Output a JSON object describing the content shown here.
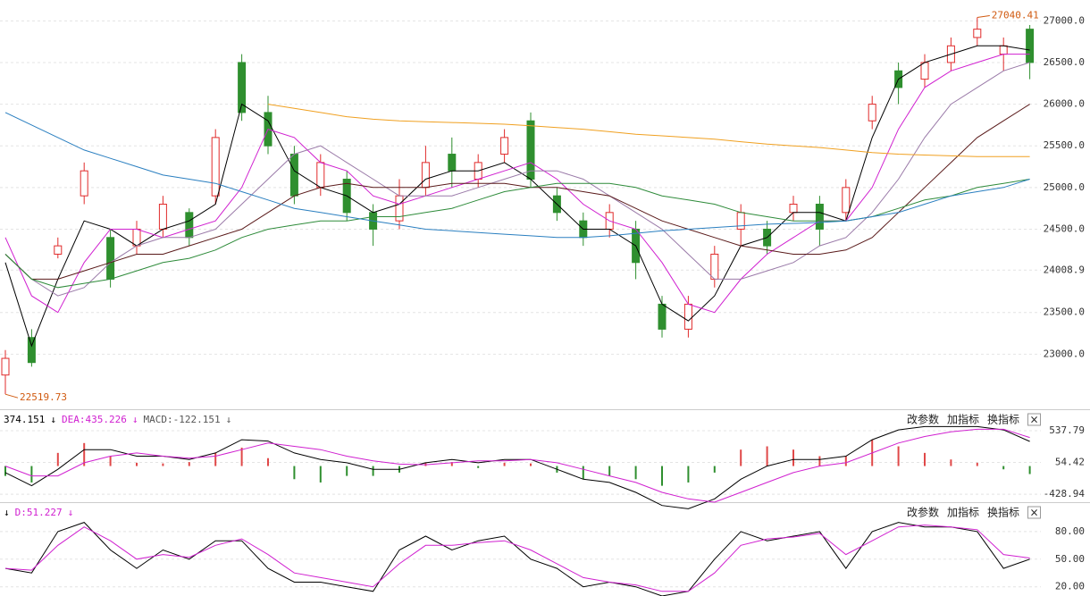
{
  "chart_data": [
    {
      "type": "candlestick",
      "ylim": [
        22350,
        27250
      ],
      "yticks": [
        {
          "value": 23000,
          "label": "23000.0"
        },
        {
          "value": 23500,
          "label": "23500.0"
        },
        {
          "value": 24008.9,
          "label": "24008.9"
        },
        {
          "value": 24500,
          "label": "24500.0"
        },
        {
          "value": 25000,
          "label": "25000.0"
        },
        {
          "value": 25500,
          "label": "25500.0"
        },
        {
          "value": 26000,
          "label": "26000.0"
        },
        {
          "value": 26500,
          "label": "26500.0"
        },
        {
          "value": 27000,
          "label": "27000.0"
        }
      ],
      "grid": true,
      "up_color": "#e02b2b",
      "down_color": "#2f8f2f",
      "open": [
        22750,
        23200,
        24200,
        24900,
        24400,
        24300,
        24500,
        24700,
        24900,
        26500,
        25900,
        25400,
        25000,
        25100,
        24700,
        24600,
        25000,
        25400,
        25100,
        25400,
        25800,
        24900,
        24600,
        24500,
        24500,
        23600,
        23300,
        23900,
        24500,
        24500,
        24700,
        24800,
        24700,
        25800,
        26400,
        26300,
        26500,
        26800,
        26600,
        26900
      ],
      "high": [
        23050,
        23300,
        24400,
        25300,
        24500,
        24600,
        24900,
        24750,
        25700,
        26600,
        26100,
        25500,
        25400,
        25200,
        24800,
        25100,
        25500,
        25600,
        25400,
        25700,
        25900,
        25000,
        24700,
        24800,
        24600,
        23700,
        23700,
        24300,
        24800,
        24600,
        24900,
        24900,
        25100,
        26100,
        26500,
        26600,
        26800,
        27040.41,
        26800,
        26950
      ],
      "low": [
        22519.73,
        22850,
        24150,
        24800,
        23800,
        24200,
        24400,
        24300,
        24800,
        25800,
        25400,
        24800,
        24900,
        24600,
        24300,
        24500,
        24900,
        25000,
        25000,
        25300,
        25000,
        24600,
        24300,
        24400,
        23900,
        23200,
        23200,
        23800,
        24300,
        24200,
        24600,
        24300,
        24600,
        25700,
        26000,
        26200,
        26400,
        26700,
        26400,
        26300
      ],
      "close": [
        22950,
        22900,
        24300,
        25200,
        23900,
        24500,
        24800,
        24400,
        25600,
        25900,
        25500,
        24900,
        25300,
        24700,
        24500,
        24900,
        25300,
        25200,
        25300,
        25600,
        25100,
        24700,
        24400,
        24700,
        24100,
        23300,
        23600,
        24200,
        24700,
        24300,
        24800,
        24500,
        25000,
        26000,
        26200,
        26500,
        26700,
        26900,
        26700,
        26500
      ],
      "lines": [
        {
          "color": "#000000",
          "values": [
            24100,
            23100,
            23900,
            24600,
            24500,
            24300,
            24500,
            24600,
            24800,
            26000,
            25800,
            25200,
            25000,
            24900,
            24700,
            24800,
            25100,
            25200,
            25200,
            25300,
            25100,
            24800,
            24500,
            24500,
            24300,
            23600,
            23400,
            23700,
            24300,
            24400,
            24700,
            24700,
            24600,
            25600,
            26300,
            26500,
            26600,
            26700,
            26700,
            26650
          ]
        },
        {
          "color": "#d020d0",
          "values": [
            24400,
            23700,
            23500,
            24100,
            24500,
            24500,
            24400,
            24500,
            24600,
            25000,
            25700,
            25600,
            25300,
            25200,
            24900,
            24800,
            24900,
            25000,
            25100,
            25200,
            25300,
            25100,
            24800,
            24600,
            24500,
            24100,
            23600,
            23500,
            23900,
            24200,
            24400,
            24600,
            24600,
            25000,
            25700,
            26200,
            26400,
            26500,
            26600,
            26600
          ]
        },
        {
          "color": "#9a7aa8",
          "values": [
            24200,
            23900,
            23700,
            23800,
            24100,
            24300,
            24400,
            24400,
            24500,
            24800,
            25100,
            25400,
            25500,
            25300,
            25100,
            24900,
            24900,
            24900,
            25000,
            25100,
            25200,
            25200,
            25100,
            24900,
            24700,
            24500,
            24200,
            23900,
            23900,
            24000,
            24100,
            24300,
            24400,
            24700,
            25100,
            25600,
            26000,
            26200,
            26400,
            26500
          ]
        },
        {
          "color": "#5a1a1a",
          "values": [
            24200,
            23900,
            23900,
            24000,
            24100,
            24200,
            24200,
            24300,
            24400,
            24500,
            24700,
            24900,
            25000,
            25050,
            25000,
            25000,
            25000,
            25050,
            25050,
            25050,
            25000,
            25000,
            24950,
            24900,
            24750,
            24600,
            24500,
            24400,
            24300,
            24250,
            24200,
            24200,
            24250,
            24400,
            24700,
            25000,
            25300,
            25600,
            25800,
            26000
          ]
        },
        {
          "color": "#2e8b3a",
          "values": [
            24200,
            23900,
            23800,
            23850,
            23900,
            24000,
            24100,
            24150,
            24250,
            24400,
            24500,
            24550,
            24600,
            24600,
            24650,
            24650,
            24700,
            24750,
            24850,
            24950,
            25000,
            25050,
            25050,
            25050,
            25000,
            24900,
            24850,
            24800,
            24700,
            24650,
            24600,
            24600,
            24600,
            24650,
            24750,
            24850,
            24900,
            25000,
            25050,
            25100
          ]
        },
        {
          "color": "#2a7fc0",
          "values": [
            25900,
            25750,
            25600,
            25450,
            25350,
            25250,
            25150,
            25100,
            25050,
            24950,
            24850,
            24750,
            24700,
            24650,
            24600,
            24550,
            24500,
            24480,
            24460,
            24440,
            24420,
            24400,
            24400,
            24420,
            24450,
            24480,
            24500,
            24520,
            24540,
            24560,
            24570,
            24580,
            24600,
            24650,
            24700,
            24800,
            24900,
            24950,
            25000,
            25100
          ]
        },
        {
          "color": "#f0a020",
          "values": [
            null,
            null,
            null,
            null,
            null,
            null,
            null,
            null,
            null,
            null,
            26000,
            25950,
            25900,
            25850,
            25820,
            25800,
            25790,
            25780,
            25770,
            25760,
            25740,
            25720,
            25700,
            25670,
            25640,
            25620,
            25600,
            25580,
            25550,
            25520,
            25500,
            25480,
            25450,
            25420,
            25400,
            25390,
            25380,
            25370,
            25370,
            25370
          ]
        }
      ],
      "annotations": [
        {
          "value": 27040.41,
          "label": "27040.41"
        },
        {
          "value": 22519.73,
          "label": "22519.73"
        }
      ],
      "annotation_color": "#d05a10"
    },
    {
      "type": "macd",
      "ylim": [
        -550,
        810
      ],
      "yticks": [
        -428.94,
        54.42,
        537.79
      ],
      "grid": true,
      "up_color": "#e04848",
      "down_color": "#2f8f2f",
      "header": [
        {
          "text": "374.151",
          "color": "#000000"
        },
        {
          "text": "↓",
          "color": "#000000"
        },
        {
          "text": "DEA:435.226",
          "color": "#d020d0"
        },
        {
          "text": "↓",
          "color": "#d020d0"
        },
        {
          "text": "MACD:-122.151",
          "color": "#555555"
        },
        {
          "text": "↓",
          "color": "#555555"
        }
      ],
      "buttons": [
        "改参数",
        "加指标",
        "换指标",
        "×"
      ],
      "macd": [
        -150,
        -250,
        200,
        350,
        150,
        50,
        40,
        60,
        200,
        280,
        120,
        -200,
        -250,
        -150,
        -150,
        -100,
        50,
        60,
        -30,
        50,
        40,
        -100,
        -200,
        -150,
        -200,
        -300,
        -250,
        -100,
        250,
        300,
        250,
        150,
        150,
        400,
        300,
        200,
        100,
        50,
        -50,
        -122.151
      ],
      "lines": [
        {
          "color": "#000000",
          "values": [
            -100,
            -300,
            -50,
            250,
            250,
            150,
            150,
            100,
            200,
            400,
            380,
            200,
            100,
            50,
            -50,
            -50,
            50,
            100,
            50,
            100,
            100,
            -50,
            -200,
            -250,
            -400,
            -600,
            -650,
            -500,
            -200,
            0,
            100,
            100,
            150,
            400,
            550,
            600,
            600,
            600,
            550,
            374.151
          ]
        },
        {
          "color": "#d020d0",
          "values": [
            0,
            -150,
            -150,
            50,
            150,
            200,
            150,
            120,
            150,
            250,
            350,
            300,
            250,
            150,
            80,
            30,
            20,
            50,
            80,
            80,
            100,
            50,
            -50,
            -150,
            -250,
            -400,
            -500,
            -550,
            -400,
            -250,
            -100,
            0,
            50,
            200,
            350,
            450,
            520,
            560,
            560,
            435.226
          ]
        }
      ]
    },
    {
      "type": "line",
      "ylim": [
        10,
        108
      ],
      "yticks": [
        {
          "value": 20,
          "label": "20.00"
        },
        {
          "value": 50,
          "label": "50.00"
        },
        {
          "value": 80,
          "label": "80.00"
        }
      ],
      "grid": true,
      "header": [
        {
          "text": "↓",
          "color": "#000000"
        },
        {
          "text": "D:51.227",
          "color": "#d020d0"
        },
        {
          "text": "↓",
          "color": "#d020d0"
        }
      ],
      "buttons": [
        "改参数",
        "加指标",
        "换指标",
        "×"
      ],
      "lines": [
        {
          "color": "#000000",
          "values": [
            40,
            35,
            80,
            90,
            60,
            40,
            60,
            50,
            70,
            70,
            40,
            25,
            25,
            20,
            15,
            60,
            75,
            60,
            70,
            75,
            50,
            40,
            20,
            25,
            20,
            10,
            15,
            50,
            80,
            70,
            75,
            80,
            40,
            80,
            90,
            85,
            85,
            80,
            40,
            50
          ]
        },
        {
          "color": "#d020d0",
          "values": [
            40,
            38,
            65,
            85,
            70,
            50,
            55,
            52,
            65,
            72,
            55,
            35,
            30,
            25,
            20,
            45,
            65,
            65,
            68,
            70,
            60,
            45,
            30,
            25,
            22,
            15,
            15,
            35,
            65,
            72,
            74,
            78,
            55,
            70,
            85,
            87,
            85,
            82,
            55,
            51.227
          ]
        }
      ]
    }
  ]
}
